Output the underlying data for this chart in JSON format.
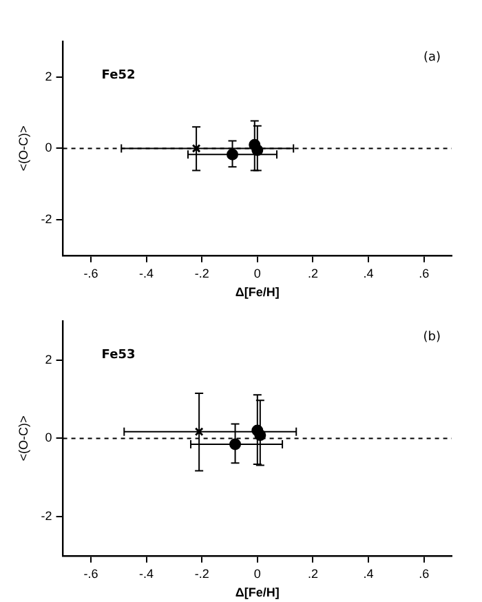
{
  "chart_data": [
    {
      "type": "scatter",
      "xlabel": "Δ[Fe/H]",
      "ylabel": "<(O-C)>",
      "annotations": [
        "Fe52",
        "(a)"
      ],
      "xlim": [
        -0.7,
        0.7
      ],
      "ylim": [
        -3,
        3
      ],
      "xticks": [
        {
          "value": -0.6,
          "label": "-.6"
        },
        {
          "value": -0.4,
          "label": "-.4"
        },
        {
          "value": -0.2,
          "label": "-.2"
        },
        0,
        {
          "value": 0.2,
          "label": ".2"
        },
        {
          "value": 0.4,
          "label": ".4"
        },
        {
          "value": 0.6,
          "label": ".6"
        }
      ],
      "yticks": [
        -2,
        0,
        2
      ],
      "grid": false,
      "legend": false,
      "ref_lines": [
        {
          "axis": "y",
          "value": 0,
          "line_style": "dashed",
          "color": "#000000"
        }
      ],
      "series": [
        {
          "marker": "cross",
          "color": "#000000",
          "x": [
            -0.22
          ],
          "values": [
            0.0
          ],
          "errors": [
            [
              -0.62,
              0.6
            ]
          ],
          "xerrors": [
            [
              -0.49,
              0.13
            ]
          ]
        },
        {
          "marker": "circle",
          "color": "#000000",
          "x": [
            -0.09
          ],
          "values": [
            -0.17
          ],
          "errors": [
            [
              -0.52,
              0.21
            ]
          ],
          "xerrors": [
            [
              -0.25,
              0.07
            ]
          ]
        },
        {
          "marker": "circle",
          "color": "#000000",
          "x": [
            -0.01
          ],
          "values": [
            0.1
          ],
          "errors": [
            [
              -0.62,
              0.77
            ]
          ]
        },
        {
          "marker": "circle",
          "color": "#000000",
          "x": [
            0.0
          ],
          "values": [
            -0.05
          ],
          "errors": [
            [
              -0.62,
              0.63
            ]
          ]
        }
      ]
    },
    {
      "type": "scatter",
      "xlabel": "Δ[Fe/H]",
      "ylabel": "<(O-C)>",
      "annotations": [
        "Fe53",
        "(b)"
      ],
      "xlim": [
        -0.7,
        0.7
      ],
      "ylim": [
        -3,
        3
      ],
      "xticks": [
        {
          "value": -0.6,
          "label": "-.6"
        },
        {
          "value": -0.4,
          "label": "-.4"
        },
        {
          "value": -0.2,
          "label": "-.2"
        },
        0,
        {
          "value": 0.2,
          "label": ".2"
        },
        {
          "value": 0.4,
          "label": ".4"
        },
        {
          "value": 0.6,
          "label": ".6"
        }
      ],
      "yticks": [
        -2,
        0,
        2
      ],
      "grid": false,
      "legend": false,
      "ref_lines": [
        {
          "axis": "y",
          "value": 0,
          "line_style": "dashed",
          "color": "#000000"
        }
      ],
      "series": [
        {
          "marker": "cross",
          "color": "#000000",
          "x": [
            -0.21
          ],
          "values": [
            0.17
          ],
          "errors": [
            [
              -0.83,
              1.15
            ]
          ],
          "xerrors": [
            [
              -0.48,
              0.14
            ]
          ]
        },
        {
          "marker": "circle",
          "color": "#000000",
          "x": [
            -0.08
          ],
          "values": [
            -0.15
          ],
          "errors": [
            [
              -0.63,
              0.37
            ]
          ],
          "xerrors": [
            [
              -0.24,
              0.09
            ]
          ]
        },
        {
          "marker": "circle",
          "color": "#000000",
          "x": [
            0.0
          ],
          "values": [
            0.2
          ],
          "errors": [
            [
              -0.66,
              1.11
            ]
          ]
        },
        {
          "marker": "circle",
          "color": "#000000",
          "x": [
            0.01
          ],
          "values": [
            0.08
          ],
          "errors": [
            [
              -0.69,
              0.97
            ]
          ]
        }
      ]
    }
  ]
}
